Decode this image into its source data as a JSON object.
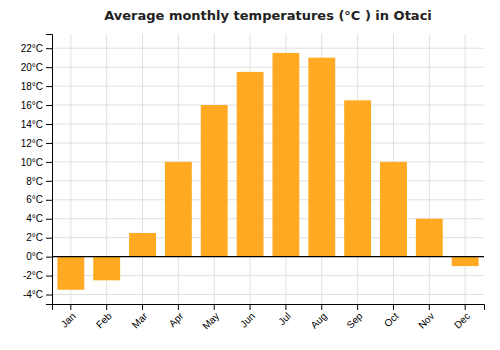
{
  "chart_data": {
    "type": "bar",
    "title": "Average monthly temperatures (°C ) in Otaci",
    "categories": [
      "Jan",
      "Feb",
      "Mar",
      "Apr",
      "May",
      "Jun",
      "Jul",
      "Aug",
      "Sep",
      "Oct",
      "Nov",
      "Dec"
    ],
    "values": [
      -3.5,
      -2.5,
      2.5,
      10.0,
      16.0,
      19.5,
      21.5,
      21.0,
      16.5,
      10.0,
      4.0,
      -1.0
    ],
    "color": "#FFAA22",
    "ylim": [
      -5,
      23.5
    ],
    "yticks": [
      {
        "value": -4,
        "label": "-4°C"
      },
      {
        "value": -2,
        "label": "-2°C"
      },
      {
        "value": 0,
        "label": "0°C"
      },
      {
        "value": 2,
        "label": "2°C"
      },
      {
        "value": 4,
        "label": "4°C"
      },
      {
        "value": 6,
        "label": "6°C"
      },
      {
        "value": 8,
        "label": "8°C"
      },
      {
        "value": 10,
        "label": "10°C"
      },
      {
        "value": 12,
        "label": "12°C"
      },
      {
        "value": 14,
        "label": "14°C"
      },
      {
        "value": 16,
        "label": "16°C"
      },
      {
        "value": 18,
        "label": "18°C"
      },
      {
        "value": 20,
        "label": "20°C"
      },
      {
        "value": 22,
        "label": "22°C"
      }
    ],
    "grid": true
  }
}
